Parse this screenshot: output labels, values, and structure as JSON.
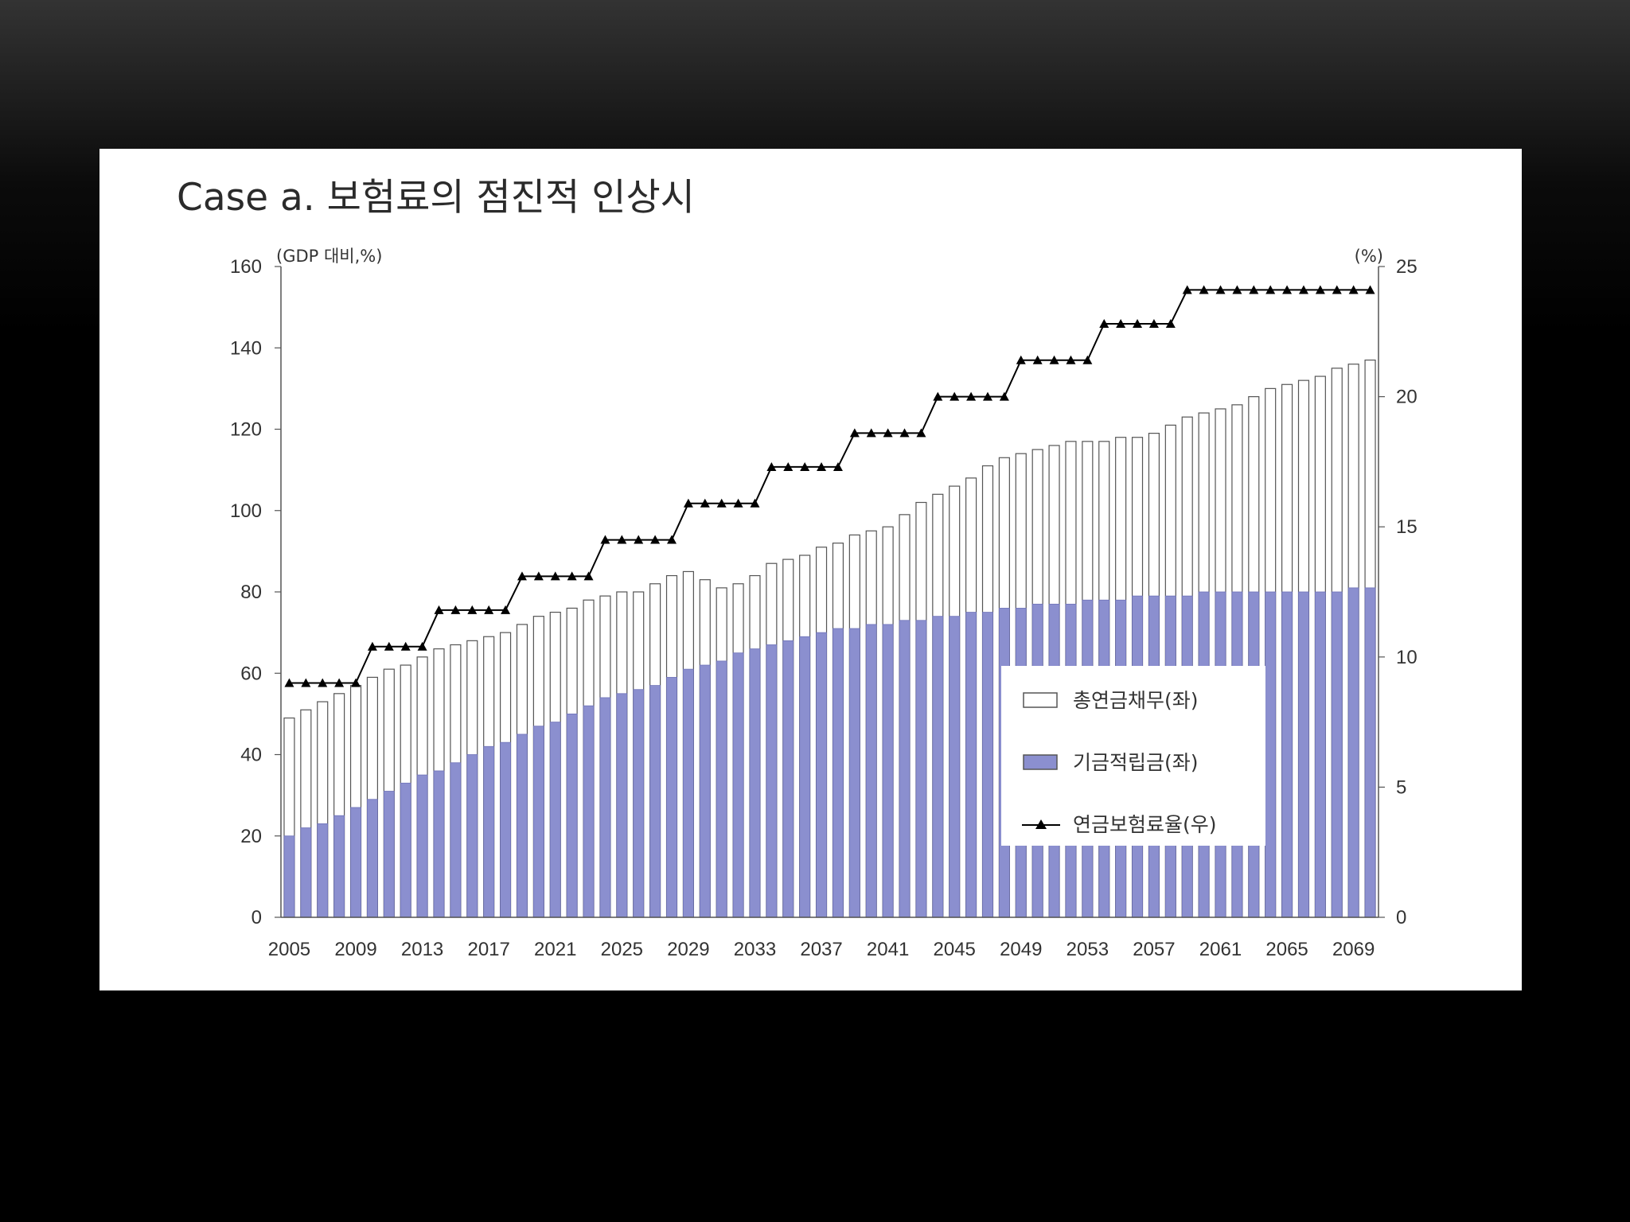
{
  "chart_data": {
    "type": "bar",
    "title": "Case a. 보험료의 점진적 인상시",
    "y_left_unit": "(GDP 대비,%)",
    "y_right_unit": "(%)",
    "ylim_left": [
      0,
      160
    ],
    "ylim_right": [
      0,
      25
    ],
    "yticks_left": [
      "0",
      "20",
      "40",
      "60",
      "80",
      "100",
      "120",
      "140",
      "160"
    ],
    "yticks_right": [
      "0",
      "5",
      "10",
      "15",
      "20",
      "25"
    ],
    "x_tick_labels": [
      "2005",
      "2009",
      "2013",
      "2017",
      "2021",
      "2025",
      "2029",
      "2033",
      "2037",
      "2041",
      "2045",
      "2049",
      "2053",
      "2057",
      "2061",
      "2065",
      "2069"
    ],
    "legend_position": "bottom-right",
    "x": [
      2005,
      2006,
      2007,
      2008,
      2009,
      2010,
      2011,
      2012,
      2013,
      2014,
      2015,
      2016,
      2017,
      2018,
      2019,
      2020,
      2021,
      2022,
      2023,
      2024,
      2025,
      2026,
      2027,
      2028,
      2029,
      2030,
      2031,
      2032,
      2033,
      2034,
      2035,
      2036,
      2037,
      2038,
      2039,
      2040,
      2041,
      2042,
      2043,
      2044,
      2045,
      2046,
      2047,
      2048,
      2049,
      2050,
      2051,
      2052,
      2053,
      2054,
      2055,
      2056,
      2057,
      2058,
      2059,
      2060,
      2061,
      2062,
      2063,
      2064,
      2065,
      2066,
      2067,
      2068,
      2069,
      2070
    ],
    "series": [
      {
        "name": "총연금채무(좌)",
        "kind": "bar",
        "axis": "left",
        "color": "#ffffff",
        "values": [
          49,
          51,
          53,
          55,
          57,
          59,
          61,
          62,
          64,
          66,
          67,
          68,
          69,
          70,
          72,
          74,
          75,
          76,
          78,
          79,
          80,
          80,
          82,
          84,
          85,
          83,
          81,
          82,
          84,
          87,
          88,
          89,
          91,
          92,
          94,
          95,
          96,
          99,
          102,
          104,
          106,
          108,
          111,
          113,
          114,
          115,
          116,
          117,
          117,
          117,
          118,
          118,
          119,
          121,
          123,
          124,
          125,
          126,
          128,
          130,
          131,
          132,
          133,
          135,
          136,
          137
        ]
      },
      {
        "name": "기금적립금(좌)",
        "kind": "bar",
        "axis": "left",
        "color": "#8b8fcf",
        "values": [
          20,
          22,
          23,
          25,
          27,
          29,
          31,
          33,
          35,
          36,
          38,
          40,
          42,
          43,
          45,
          47,
          48,
          50,
          52,
          54,
          55,
          56,
          57,
          59,
          61,
          62,
          63,
          65,
          66,
          67,
          68,
          69,
          70,
          71,
          71,
          72,
          72,
          73,
          73,
          74,
          74,
          75,
          75,
          76,
          76,
          77,
          77,
          77,
          78,
          78,
          78,
          79,
          79,
          79,
          79,
          80,
          80,
          80,
          80,
          80,
          80,
          80,
          80,
          80,
          81,
          81
        ]
      },
      {
        "name": "연금보험료율(우)",
        "kind": "line",
        "axis": "right",
        "color": "#000000",
        "values": [
          9,
          9,
          9,
          9,
          9,
          10.4,
          10.4,
          10.4,
          10.4,
          11.8,
          11.8,
          11.8,
          11.8,
          11.8,
          13.1,
          13.1,
          13.1,
          13.1,
          13.1,
          14.5,
          14.5,
          14.5,
          14.5,
          14.5,
          15.9,
          15.9,
          15.9,
          15.9,
          15.9,
          17.3,
          17.3,
          17.3,
          17.3,
          17.3,
          18.6,
          18.6,
          18.6,
          18.6,
          18.6,
          20,
          20,
          20,
          20,
          20,
          21.4,
          21.4,
          21.4,
          21.4,
          21.4,
          22.8,
          22.8,
          22.8,
          22.8,
          22.8,
          24.1,
          24.1,
          24.1,
          24.1,
          24.1,
          24.1,
          24.1,
          24.1,
          24.1,
          24.1,
          24.1,
          24.1
        ]
      }
    ]
  }
}
